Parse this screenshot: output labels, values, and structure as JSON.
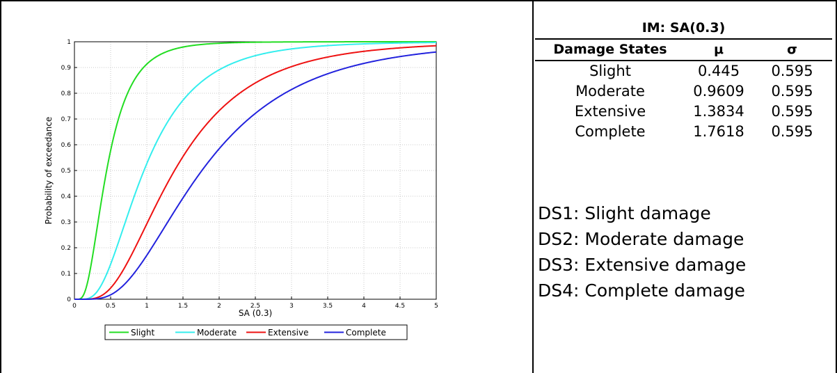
{
  "chart_data": {
    "type": "line",
    "xlabel": "SA (0.3)",
    "ylabel": "Probability of exceedance",
    "xlim": [
      0,
      5
    ],
    "ylim": [
      0,
      1
    ],
    "xticks": [
      "0",
      "0.5",
      "1",
      "1.5",
      "2",
      "2.5",
      "3",
      "3.5",
      "4",
      "4.5",
      "5"
    ],
    "yticks": [
      "0",
      "0.1",
      "0.2",
      "0.3",
      "0.4",
      "0.5",
      "0.6",
      "0.7",
      "0.8",
      "0.9",
      "1"
    ],
    "grid": true,
    "legend_position": "bottom",
    "series": [
      {
        "name": "Slight",
        "color": "#22dd22",
        "median": 0.445,
        "sigma": 0.595,
        "x": [
          0.1,
          0.25,
          0.5,
          0.75,
          1,
          1.5,
          2,
          3,
          4,
          5
        ],
        "y": [
          0.006,
          0.166,
          0.576,
          0.81,
          0.913,
          0.984,
          0.994,
          0.999,
          1.0,
          1.0
        ]
      },
      {
        "name": "Moderate",
        "color": "#33eeee",
        "median": 0.9609,
        "sigma": 0.595,
        "x": [
          0.25,
          0.5,
          0.75,
          1,
          1.5,
          2,
          2.5,
          3,
          4,
          5
        ],
        "y": [
          0.012,
          0.136,
          0.339,
          0.526,
          0.771,
          0.891,
          0.946,
          0.972,
          0.992,
          0.997
        ]
      },
      {
        "name": "Extensive",
        "color": "#ee1111",
        "median": 1.3834,
        "sigma": 0.595,
        "x": [
          0.5,
          0.75,
          1,
          1.5,
          2,
          2.5,
          3,
          3.5,
          4,
          4.5,
          5
        ],
        "y": [
          0.044,
          0.152,
          0.293,
          0.553,
          0.733,
          0.84,
          0.903,
          0.94,
          0.962,
          0.976,
          0.984
        ]
      },
      {
        "name": "Complete",
        "color": "#2222dd",
        "median": 1.7618,
        "sigma": 0.595,
        "x": [
          0.5,
          0.75,
          1,
          1.5,
          2,
          2.5,
          3,
          3.5,
          4,
          4.5,
          5
        ],
        "y": [
          0.017,
          0.076,
          0.171,
          0.393,
          0.583,
          0.72,
          0.815,
          0.876,
          0.917,
          0.943,
          0.96
        ]
      }
    ]
  },
  "table": {
    "title": "IM: SA(0.3)",
    "headers": [
      "Damage States",
      "μ",
      "σ"
    ],
    "rows": [
      [
        "Slight",
        "0.445",
        "0.595"
      ],
      [
        "Moderate",
        "0.9609",
        "0.595"
      ],
      [
        "Extensive",
        "1.3834",
        "0.595"
      ],
      [
        "Complete",
        "1.7618",
        "0.595"
      ]
    ]
  },
  "definitions": [
    "DS1: Slight damage",
    "DS2: Moderate damage",
    "DS3: Extensive damage",
    "DS4: Complete damage"
  ]
}
